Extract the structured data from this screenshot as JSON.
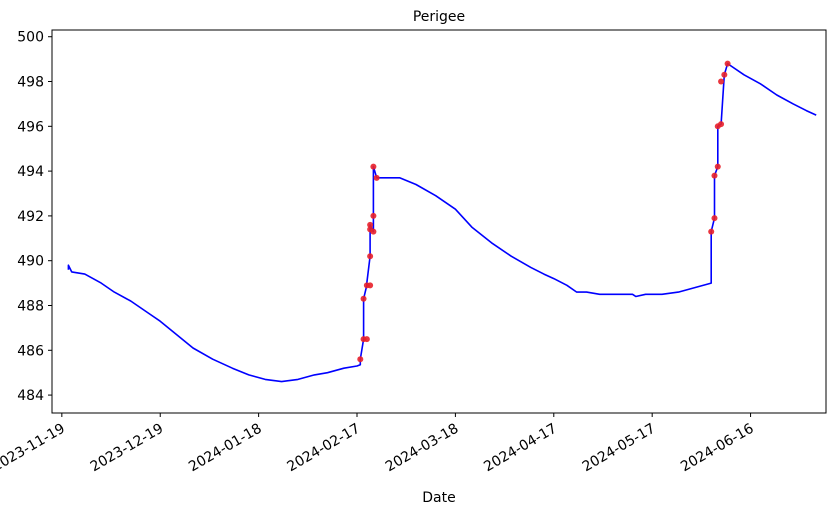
{
  "chart_data": {
    "type": "line",
    "title": "Perigee",
    "xlabel": "Date",
    "ylabel": "",
    "x_ticks": [
      "2023-11-19",
      "2023-12-19",
      "2024-01-18",
      "2024-02-17",
      "2024-03-18",
      "2024-04-17",
      "2024-05-17",
      "2024-06-16"
    ],
    "y_ticks": [
      484,
      486,
      488,
      490,
      492,
      494,
      496,
      498,
      500
    ],
    "xlim": [
      "2023-11-16",
      "2024-07-09"
    ],
    "ylim": [
      483.2,
      500.3
    ],
    "grid": false,
    "series": [
      {
        "color": "#0000ff",
        "style": "line",
        "points": [
          [
            "2023-11-21",
            489.6
          ],
          [
            "2023-11-21",
            489.8
          ],
          [
            "2023-11-22",
            489.5
          ],
          [
            "2023-11-26",
            489.4
          ],
          [
            "2023-12-01",
            489.0
          ],
          [
            "2023-12-05",
            488.6
          ],
          [
            "2023-12-10",
            488.2
          ],
          [
            "2023-12-16",
            487.6
          ],
          [
            "2023-12-19",
            487.3
          ],
          [
            "2023-12-24",
            486.7
          ],
          [
            "2023-12-29",
            486.1
          ],
          [
            "2024-01-04",
            485.6
          ],
          [
            "2024-01-10",
            485.2
          ],
          [
            "2024-01-15",
            484.9
          ],
          [
            "2024-01-20",
            484.7
          ],
          [
            "2024-01-25",
            484.6
          ],
          [
            "2024-01-30",
            484.7
          ],
          [
            "2024-02-04",
            484.9
          ],
          [
            "2024-02-08",
            485.0
          ],
          [
            "2024-02-13",
            485.2
          ],
          [
            "2024-02-17",
            485.3
          ],
          [
            "2024-02-18",
            485.35
          ],
          [
            "2024-02-18",
            485.6
          ],
          [
            "2024-02-19",
            486.5
          ],
          [
            "2024-02-19",
            488.3
          ],
          [
            "2024-02-20",
            488.9
          ],
          [
            "2024-02-20",
            489.0
          ],
          [
            "2024-02-21",
            490.2
          ],
          [
            "2024-02-21",
            491.4
          ],
          [
            "2024-02-21",
            491.6
          ],
          [
            "2024-02-22",
            491.3
          ],
          [
            "2024-02-22",
            492.0
          ],
          [
            "2024-02-22",
            494.2
          ],
          [
            "2024-02-23",
            493.7
          ],
          [
            "2024-02-24",
            493.7
          ],
          [
            "2024-03-01",
            493.7
          ],
          [
            "2024-03-06",
            493.4
          ],
          [
            "2024-03-12",
            492.9
          ],
          [
            "2024-03-18",
            492.3
          ],
          [
            "2024-03-23",
            491.5
          ],
          [
            "2024-03-29",
            490.8
          ],
          [
            "2024-04-04",
            490.2
          ],
          [
            "2024-04-10",
            489.7
          ],
          [
            "2024-04-14",
            489.4
          ],
          [
            "2024-04-17",
            489.2
          ],
          [
            "2024-04-21",
            488.9
          ],
          [
            "2024-04-24",
            488.6
          ],
          [
            "2024-04-27",
            488.6
          ],
          [
            "2024-05-01",
            488.5
          ],
          [
            "2024-05-06",
            488.5
          ],
          [
            "2024-05-11",
            488.5
          ],
          [
            "2024-05-12",
            488.4
          ],
          [
            "2024-05-15",
            488.5
          ],
          [
            "2024-05-20",
            488.5
          ],
          [
            "2024-05-25",
            488.6
          ],
          [
            "2024-05-30",
            488.8
          ],
          [
            "2024-06-04",
            489.0
          ],
          [
            "2024-06-04",
            491.3
          ],
          [
            "2024-06-05",
            491.9
          ],
          [
            "2024-06-05",
            493.8
          ],
          [
            "2024-06-06",
            494.2
          ],
          [
            "2024-06-06",
            496.0
          ],
          [
            "2024-06-07",
            496.1
          ],
          [
            "2024-06-08",
            498.3
          ],
          [
            "2024-06-09",
            498.8
          ],
          [
            "2024-06-14",
            498.3
          ],
          [
            "2024-06-19",
            497.9
          ],
          [
            "2024-06-24",
            497.4
          ],
          [
            "2024-06-29",
            497.0
          ],
          [
            "2024-07-03",
            496.7
          ],
          [
            "2024-07-06",
            496.5
          ]
        ]
      },
      {
        "color": "#e8202a",
        "style": "markers",
        "points": [
          [
            "2024-02-18",
            485.6
          ],
          [
            "2024-02-19",
            486.5
          ],
          [
            "2024-02-20",
            486.5
          ],
          [
            "2024-02-19",
            488.3
          ],
          [
            "2024-02-20",
            488.9
          ],
          [
            "2024-02-21",
            488.9
          ],
          [
            "2024-02-21",
            490.2
          ],
          [
            "2024-02-21",
            491.4
          ],
          [
            "2024-02-21",
            491.6
          ],
          [
            "2024-02-22",
            491.3
          ],
          [
            "2024-02-22",
            492.0
          ],
          [
            "2024-02-22",
            494.2
          ],
          [
            "2024-02-23",
            493.7
          ],
          [
            "2024-06-04",
            491.3
          ],
          [
            "2024-06-05",
            491.9
          ],
          [
            "2024-06-05",
            493.8
          ],
          [
            "2024-06-06",
            494.2
          ],
          [
            "2024-06-06",
            496.0
          ],
          [
            "2024-06-07",
            496.1
          ],
          [
            "2024-06-07",
            498.0
          ],
          [
            "2024-06-08",
            498.3
          ],
          [
            "2024-06-09",
            498.8
          ]
        ]
      }
    ]
  }
}
